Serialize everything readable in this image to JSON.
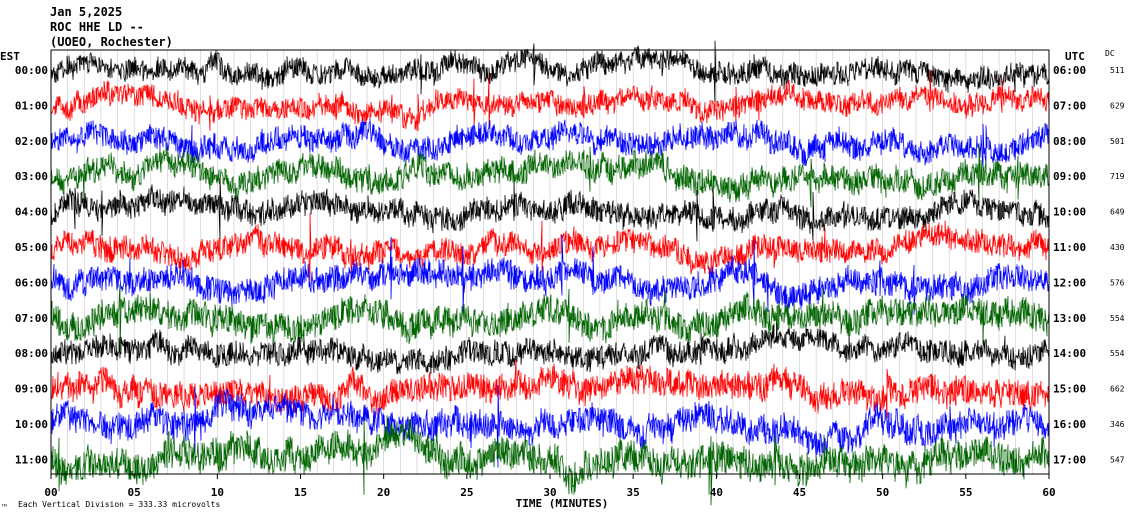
{
  "header": {
    "date": "Jan 5,2025",
    "station": "ROC HHE LD --",
    "location": "(UOEO, Rochester)"
  },
  "left_label": "EST",
  "right_label": "UTC",
  "dc_label": "DC",
  "footer": {
    "note": "Each Vertical Division = 333.33 microvolts",
    "logo_glyph": "™"
  },
  "chart_data": {
    "type": "line",
    "title": "Jan 5,2025",
    "xlabel": "TIME (MINUTES)",
    "ylabel": "",
    "xlim": [
      0,
      60
    ],
    "x_ticks": [
      "00",
      "05",
      "10",
      "15",
      "20",
      "25",
      "30",
      "35",
      "40",
      "45",
      "50",
      "55",
      "60"
    ],
    "colors": [
      "#000000",
      "#ff0000",
      "#0000ff",
      "#006400"
    ],
    "series": [
      {
        "est": "00:00",
        "utc": "06:00",
        "dc": "511",
        "color": "#000000",
        "amplitude": 0.55
      },
      {
        "est": "01:00",
        "utc": "07:00",
        "dc": "629",
        "color": "#ff0000",
        "amplitude": 0.55
      },
      {
        "est": "02:00",
        "utc": "08:00",
        "dc": "501",
        "color": "#0000ff",
        "amplitude": 0.6
      },
      {
        "est": "03:00",
        "utc": "09:00",
        "dc": "719",
        "color": "#006400",
        "amplitude": 0.65
      },
      {
        "est": "04:00",
        "utc": "10:00",
        "dc": "649",
        "color": "#000000",
        "amplitude": 0.6
      },
      {
        "est": "05:00",
        "utc": "11:00",
        "dc": "430",
        "color": "#ff0000",
        "amplitude": 0.6
      },
      {
        "est": "06:00",
        "utc": "12:00",
        "dc": "576",
        "color": "#0000ff",
        "amplitude": 0.65
      },
      {
        "est": "07:00",
        "utc": "13:00",
        "dc": "554",
        "color": "#006400",
        "amplitude": 0.7
      },
      {
        "est": "08:00",
        "utc": "14:00",
        "dc": "554",
        "color": "#000000",
        "amplitude": 0.6
      },
      {
        "est": "09:00",
        "utc": "15:00",
        "dc": "662",
        "color": "#ff0000",
        "amplitude": 0.7
      },
      {
        "est": "10:00",
        "utc": "16:00",
        "dc": "346",
        "color": "#0000ff",
        "amplitude": 0.7
      },
      {
        "est": "11:00",
        "utc": "17:00",
        "dc": "547",
        "color": "#006400",
        "amplitude": 0.8
      }
    ]
  }
}
